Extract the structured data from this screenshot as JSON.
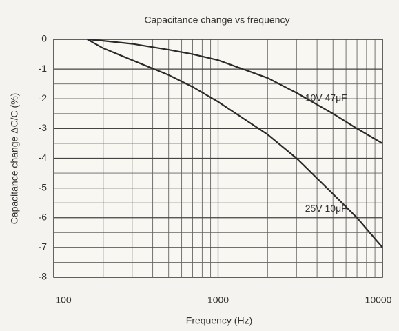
{
  "chart_data": {
    "type": "line",
    "title": "Capacitance change vs frequency",
    "x_label": "Frequency (Hz)",
    "y_label": "Capacitance change ΔC/C (%)",
    "x": [
      160,
      200,
      300,
      500,
      700,
      1000,
      2000,
      3000,
      5000,
      7000,
      10000
    ],
    "series": [
      {
        "name": "10V 47μF",
        "color": "#2a2a2a",
        "values": [
          0,
          -0.05,
          -0.15,
          -0.35,
          -0.5,
          -0.7,
          -1.3,
          -1.8,
          -2.5,
          -3.0,
          -3.5
        ]
      },
      {
        "name": "25V 10μF",
        "color": "#2a2a2a",
        "values": [
          0,
          -0.3,
          -0.7,
          -1.2,
          -1.6,
          -2.1,
          -3.2,
          -4.0,
          -5.2,
          -6.0,
          -7.0
        ]
      }
    ],
    "xlim": [
      100,
      10000
    ],
    "xticks": [
      100,
      1000,
      10000
    ],
    "xscale": "log",
    "ylim": [
      -8,
      0
    ],
    "yticks": [
      0,
      -1,
      -2,
      -3,
      -4,
      -5,
      -6,
      -7,
      -8
    ],
    "grid": true
  }
}
